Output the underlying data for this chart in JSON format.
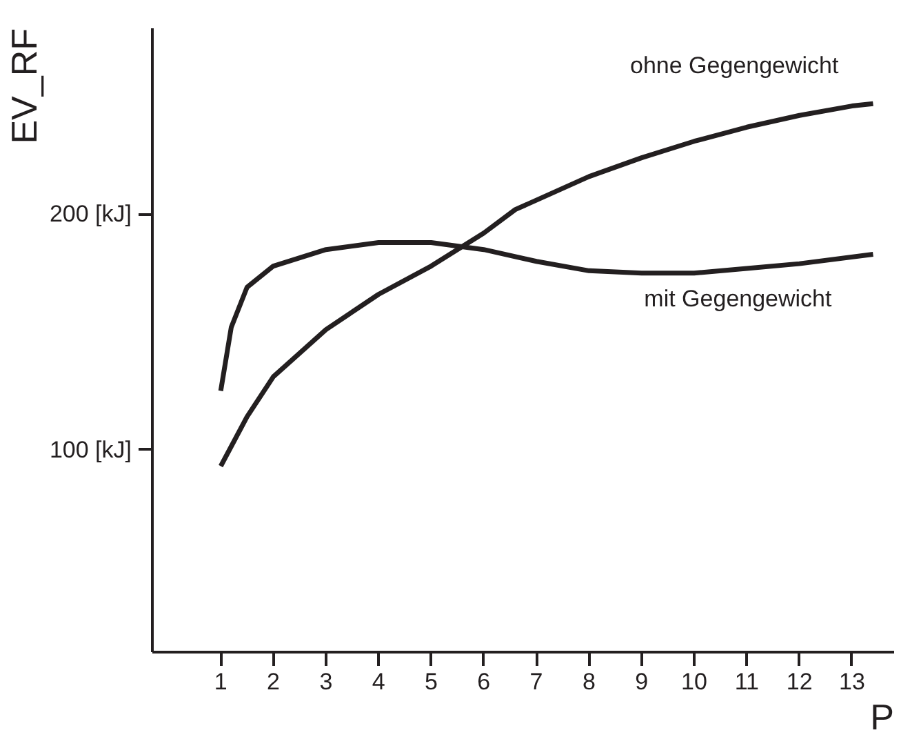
{
  "chart_data": {
    "type": "line",
    "ylabel": "EV_RF",
    "xlabel": "P",
    "xlim": [
      -0.3,
      13.8
    ],
    "ylim": [
      14,
      279
    ],
    "xticks": [
      1,
      2,
      3,
      4,
      5,
      6,
      7,
      8,
      9,
      10,
      11,
      12,
      13
    ],
    "yticks": [
      {
        "value": 100,
        "label": "100 [kJ]"
      },
      {
        "value": 200,
        "label": "200 [kJ]"
      }
    ],
    "grid": false,
    "marker": "none",
    "line_style": "solid",
    "series": [
      {
        "name": "ohne Gegengewicht",
        "color": "#231f20",
        "x": [
          1,
          1.5,
          2,
          3,
          4,
          5,
          6,
          6.6,
          8,
          9,
          10,
          11,
          12,
          13,
          13.4
        ],
        "values": [
          93,
          114,
          131,
          151,
          166,
          178,
          192,
          202,
          216,
          224,
          231,
          237,
          242,
          246,
          247
        ]
      },
      {
        "name": "mit Gegengewicht",
        "color": "#231f20",
        "x": [
          1,
          1.2,
          1.5,
          2,
          3,
          4,
          5,
          6,
          7,
          8,
          9,
          10,
          11,
          12,
          13.4
        ],
        "values": [
          125,
          152,
          169,
          178,
          185,
          188,
          188,
          185,
          180,
          176,
          175,
          175,
          177,
          179,
          183
        ]
      }
    ]
  }
}
